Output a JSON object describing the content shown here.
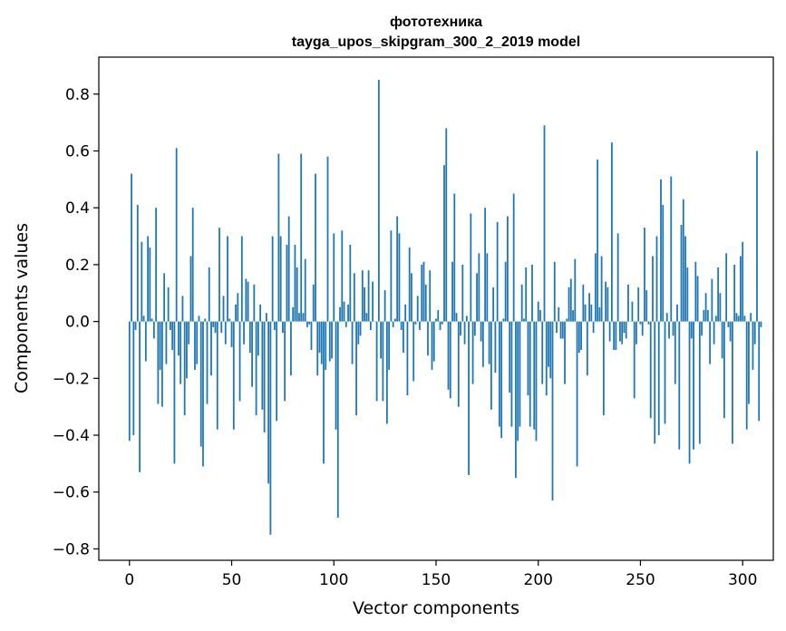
{
  "chart_data": {
    "type": "bar",
    "title": "фототехника",
    "subtitle": "tayga_upos_skipgram_300_2_2019 model",
    "xlabel": "Vector components",
    "ylabel": "Components values",
    "xlim": [
      -15,
      315
    ],
    "ylim": [
      -0.84,
      0.93
    ],
    "xticks": [
      0,
      50,
      100,
      150,
      200,
      250,
      300
    ],
    "xtick_labels": [
      "0",
      "50",
      "100",
      "150",
      "200",
      "250",
      "300"
    ],
    "yticks": [
      -0.8,
      -0.6,
      -0.4,
      -0.2,
      0.0,
      0.2,
      0.4,
      0.6,
      0.8
    ],
    "ytick_labels": [
      "−0.8",
      "−0.6",
      "−0.4",
      "−0.2",
      "0.0",
      "0.2",
      "0.4",
      "0.6",
      "0.8"
    ],
    "bar_color": "#1f77b4",
    "grid": false,
    "values": [
      -0.42,
      0.52,
      -0.4,
      -0.03,
      0.41,
      -0.53,
      0.28,
      0.02,
      -0.14,
      0.3,
      0.26,
      0.01,
      -0.06,
      0.4,
      -0.29,
      -0.17,
      -0.3,
      0.17,
      -0.15,
      0.12,
      -0.03,
      -0.1,
      -0.5,
      0.61,
      -0.12,
      -0.22,
      0.09,
      -0.33,
      -0.2,
      -0.08,
      0.23,
      0.4,
      -0.17,
      -0.15,
      0.02,
      -0.44,
      -0.51,
      0.01,
      -0.29,
      0.19,
      -0.19,
      -0.02,
      -0.04,
      -0.38,
      0.33,
      -0.04,
      0.09,
      -0.08,
      0.3,
      0.01,
      -0.09,
      -0.38,
      0.06,
      0.1,
      -0.28,
      0.3,
      -0.08,
      0.15,
      0.14,
      -0.11,
      -0.23,
      0.13,
      -0.33,
      -0.12,
      0.06,
      -0.31,
      -0.39,
      0.03,
      -0.57,
      -0.75,
      0.3,
      -0.03,
      -0.35,
      0.59,
      0.3,
      -0.04,
      -0.28,
      0.27,
      0.37,
      -0.19,
      0.05,
      0.27,
      0.19,
      0.03,
      0.59,
      0.03,
      0.22,
      -0.02,
      -0.01,
      -0.1,
      0.13,
      0.52,
      -0.19,
      -0.11,
      -0.15,
      -0.5,
      -0.17,
      0.58,
      -0.14,
      -0.13,
      0.31,
      -0.38,
      -0.69,
      0.05,
      0.32,
      0.07,
      -0.02,
      0.06,
      0.27,
      -0.15,
      0.17,
      -0.33,
      -0.08,
      -0.05,
      0.18,
      0.12,
      0.03,
      0.18,
      -0.03,
      0.14,
      0.0,
      -0.28,
      0.85,
      -0.13,
      -0.28,
      0.11,
      -0.36,
      -0.17,
      0.32,
      -0.02,
      0.01,
      0.37,
      0.31,
      -0.03,
      -0.11,
      0.06,
      -0.26,
      0.26,
      0.17,
      -0.21,
      -0.01,
      0.09,
      -0.03,
      0.2,
      0.21,
      0.13,
      -0.12,
      0.18,
      -0.17,
      -0.14,
      0.01,
      0.04,
      -0.03,
      -0.01,
      0.55,
      0.68,
      -0.24,
      -0.27,
      0.21,
      0.45,
      0.03,
      -0.3,
      -0.05,
      0.2,
      -0.08,
      0.02,
      -0.54,
      0.38,
      -0.22,
      -0.05,
      0.17,
      0.24,
      -0.07,
      -0.16,
      0.4,
      0.24,
      -0.15,
      -0.31,
      0.12,
      -0.18,
      0.35,
      -0.37,
      -0.41,
      0.01,
      0.21,
      0.37,
      -0.25,
      -0.37,
      0.45,
      -0.55,
      -0.42,
      -0.37,
      0.13,
      0.01,
      0.19,
      -0.26,
      -0.37,
      0.2,
      -0.38,
      -0.42,
      0.07,
      0.04,
      -0.22,
      0.69,
      -0.26,
      -0.16,
      -0.2,
      -0.63,
      0.21,
      -0.04,
      0.05,
      -0.06,
      -0.06,
      -0.22,
      0.01,
      0.12,
      0.15,
      0.04,
      0.22,
      -0.51,
      -0.11,
      -0.1,
      0.13,
      0.06,
      -0.19,
      0.1,
      0.06,
      -0.04,
      0.24,
      0.57,
      0.05,
      0.23,
      -0.33,
      0.14,
      0.12,
      -0.07,
      0.63,
      -0.1,
      -0.1,
      0.31,
      -0.07,
      -0.08,
      -0.04,
      -0.06,
      0.13,
      0.0,
      0.07,
      -0.27,
      -0.08,
      0.12,
      -0.01,
      -0.05,
      0.33,
      0.11,
      -0.01,
      -0.34,
      0.23,
      -0.43,
      0.3,
      -0.4,
      0.5,
      0.41,
      -0.36,
      0.03,
      -0.06,
      0.51,
      -0.05,
      -0.22,
      0.06,
      -0.45,
      0.34,
      0.43,
      0.3,
      0.19,
      -0.5,
      -0.06,
      -0.45,
      0.21,
      0.16,
      -0.43,
      -0.05,
      0.04,
      0.1,
      0.04,
      -0.15,
      0.15,
      -0.08,
      0.02,
      0.19,
      0.1,
      -0.13,
      -0.34,
      0.24,
      -0.02,
      -0.07,
      -0.43,
      0.2,
      0.03,
      0.02,
      0.23,
      0.28,
      0.02,
      -0.38,
      -0.29,
      0.03,
      -0.17,
      -0.08,
      0.6,
      -0.35,
      -0.02
    ]
  }
}
